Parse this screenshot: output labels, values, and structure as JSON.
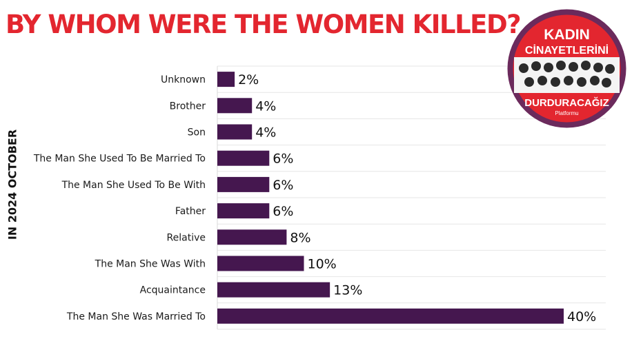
{
  "title": "BY WHOM WERE THE WOMEN KILLED?",
  "side_label": "IN 2024 OCTOBER",
  "logo": {
    "line1": "KADIN",
    "line2": "CİNAYETLERİNİ",
    "line3": "DURDURACAĞIZ",
    "line4": "Platformu"
  },
  "colors": {
    "title": "#e3262f",
    "bar": "#45174f",
    "logo_ring": "#6b2a5c",
    "logo_red": "#e3262f"
  },
  "chart_data": {
    "type": "bar",
    "orientation": "horizontal",
    "categories": [
      "Unknown",
      "Brother",
      "Son",
      "The Man She Used To Be Married To",
      "The Man She Used To Be With",
      "Father",
      "Relative",
      "The Man She Was With",
      "Acquaintance",
      "The Man She Was Married To"
    ],
    "values": [
      2,
      4,
      4,
      6,
      6,
      6,
      8,
      10,
      13,
      40
    ],
    "value_labels": [
      "2%",
      "4%",
      "4%",
      "6%",
      "6%",
      "6%",
      "8%",
      "10%",
      "13%",
      "40%"
    ],
    "unit": "%",
    "xlim": [
      0,
      45
    ],
    "grid": true
  }
}
